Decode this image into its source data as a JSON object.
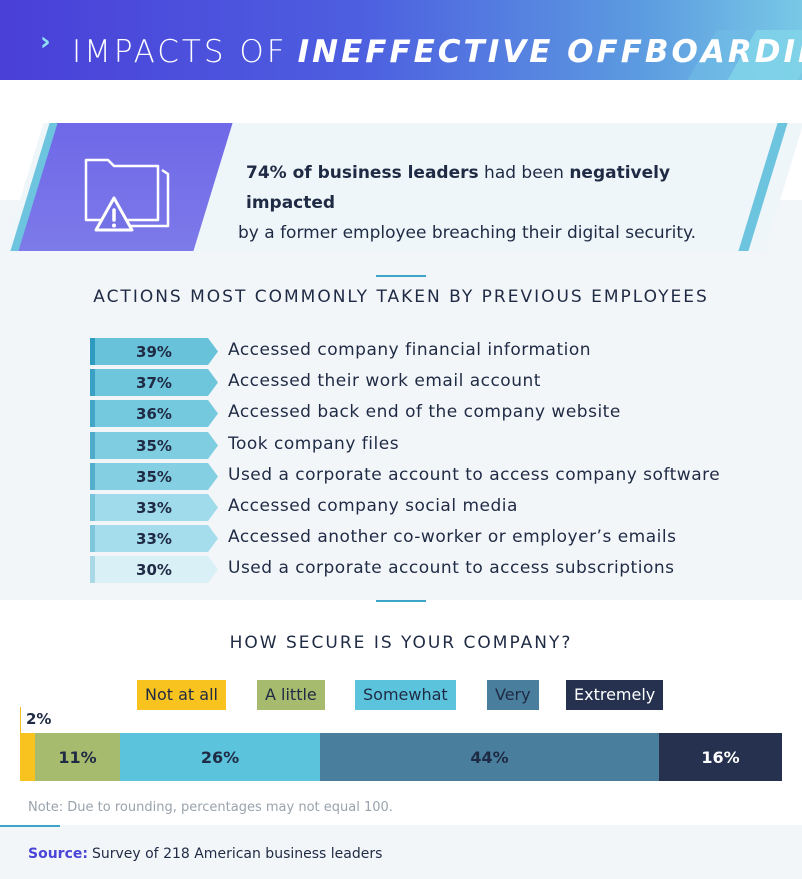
{
  "header": {
    "prefix": "IMPACTS OF",
    "emphasis": "INEFFECTIVE OFFBOARDING",
    "chevron": "›"
  },
  "callout": {
    "stat_bold": "74% of business leaders",
    "stat_mid": " had been ",
    "stat_bold2": "negatively impacted",
    "stat_rest": "by a former employee breaching their digital security.",
    "icon": "folder-warning-icon"
  },
  "actions_title": "ACTIONS MOST COMMONLY TAKEN BY PREVIOUS EMPLOYEES",
  "security_title": "HOW SECURE IS YOUR COMPANY?",
  "colors": {
    "not_at_all": "#f8c31e",
    "a_little": "#a7bb6e",
    "somewhat": "#5cc3dc",
    "very": "#4a7e9d",
    "extremely": "#25314f"
  },
  "note": "Note: Due to rounding, percentages may not equal 100.",
  "source": {
    "key": "Source:",
    "text": "Survey of 218 American business leaders"
  },
  "chart_data": [
    {
      "type": "bar",
      "title": "ACTIONS MOST COMMONLY TAKEN BY PREVIOUS EMPLOYEES",
      "categories": [
        "Accessed company financial information",
        "Accessed their work email account",
        "Accessed back end of the company website",
        "Took company files",
        "Used a corporate account to access company software",
        "Accessed company social media",
        "Accessed another co-worker or employer’s emails",
        "Used a corporate account to access subscriptions"
      ],
      "values": [
        39,
        37,
        36,
        35,
        35,
        33,
        33,
        30
      ],
      "labels": [
        "39%",
        "37%",
        "36%",
        "35%",
        "35%",
        "33%",
        "33%",
        "30%"
      ]
    },
    {
      "type": "bar",
      "stacked": true,
      "title": "HOW SECURE IS YOUR COMPANY?",
      "legend_position": "top",
      "series": [
        {
          "name": "Not at all",
          "value": 2,
          "label": "2%"
        },
        {
          "name": "A little",
          "value": 11,
          "label": "11%"
        },
        {
          "name": "Somewhat",
          "value": 26,
          "label": "26%"
        },
        {
          "name": "Very",
          "value": 44,
          "label": "44%"
        },
        {
          "name": "Extremely",
          "value": 16,
          "label": "16%"
        }
      ]
    }
  ]
}
